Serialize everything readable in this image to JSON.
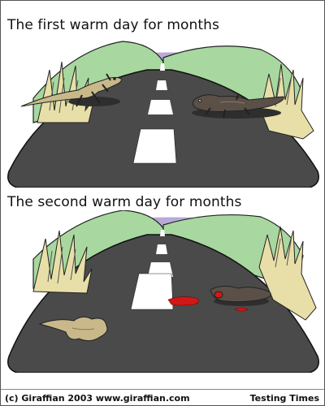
{
  "comic": {
    "panel_1": {
      "caption": "The first warm day for months"
    },
    "panel_2": {
      "caption": "The second warm day for months"
    },
    "footer": {
      "copyright": "(c) Giraffian 2003 www.giraffian.com",
      "series": "Testing Times"
    }
  }
}
